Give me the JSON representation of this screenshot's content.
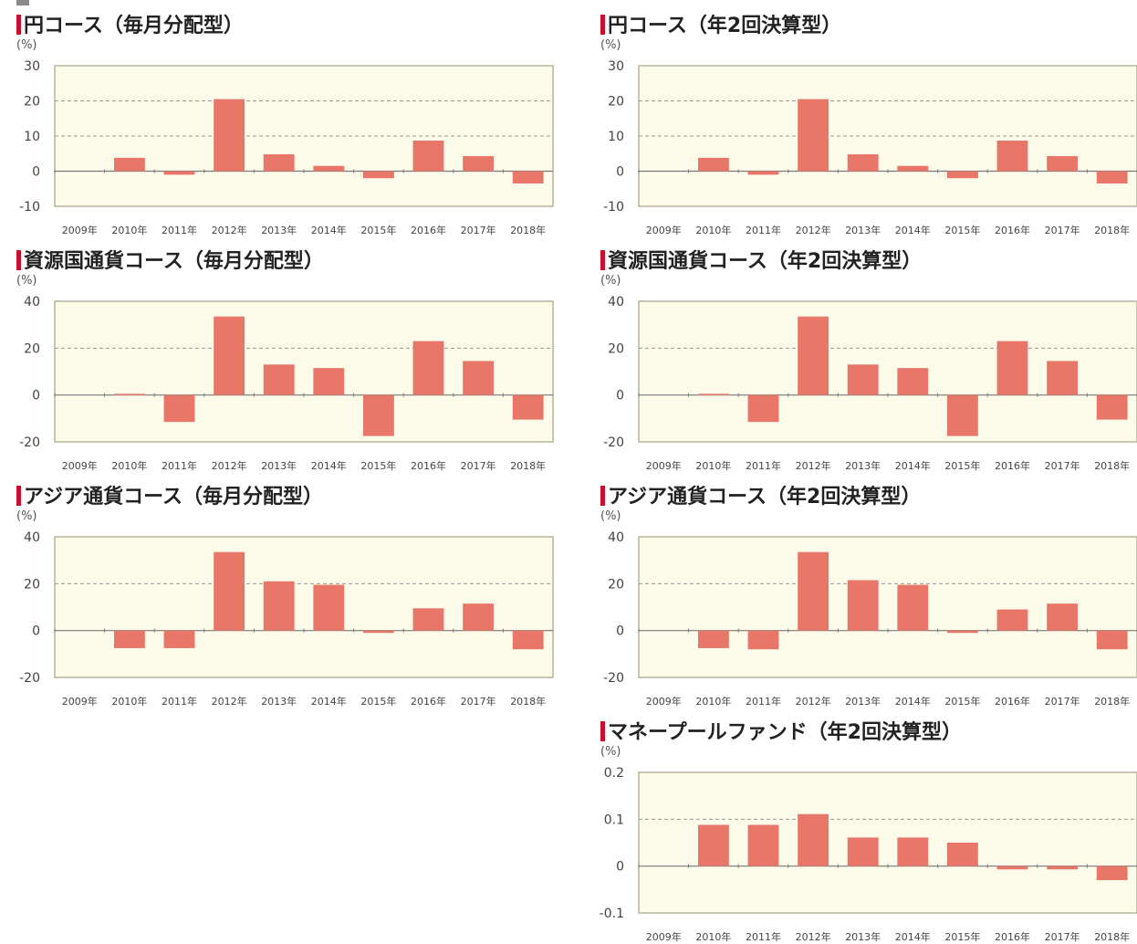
{
  "chart_data": [
    {
      "type": "bar",
      "title": "円コース（毎月分配型）",
      "unit_label": "(%)",
      "categories": [
        "2009年",
        "2010年",
        "2011年",
        "2012年",
        "2013年",
        "2014年",
        "2015年",
        "2016年",
        "2017年",
        "2018年"
      ],
      "values": [
        null,
        3.8,
        -1.0,
        20.5,
        4.8,
        1.5,
        -2.0,
        8.7,
        4.3,
        -3.5
      ],
      "ylim": [
        -10,
        30
      ],
      "yticks": [
        30,
        20,
        10,
        0,
        -10
      ],
      "ytick_labels": [
        "30",
        "20",
        "10",
        "0",
        "-10"
      ],
      "grid": "dashed"
    },
    {
      "type": "bar",
      "title": "円コース（年2回決算型）",
      "unit_label": "(%)",
      "categories": [
        "2009年",
        "2010年",
        "2011年",
        "2012年",
        "2013年",
        "2014年",
        "2015年",
        "2016年",
        "2017年",
        "2018年"
      ],
      "values": [
        null,
        3.8,
        -1.0,
        20.5,
        4.8,
        1.5,
        -2.0,
        8.7,
        4.3,
        -3.5
      ],
      "ylim": [
        -10,
        30
      ],
      "yticks": [
        30,
        20,
        10,
        0,
        -10
      ],
      "ytick_labels": [
        "30",
        "20",
        "10",
        "0",
        "-10"
      ],
      "grid": "dashed"
    },
    {
      "type": "bar",
      "title": "資源国通貨コース（毎月分配型）",
      "unit_label": "(%)",
      "categories": [
        "2009年",
        "2010年",
        "2011年",
        "2012年",
        "2013年",
        "2014年",
        "2015年",
        "2016年",
        "2017年",
        "2018年"
      ],
      "values": [
        null,
        0.5,
        -11.5,
        33.5,
        13.0,
        11.5,
        -17.5,
        23.0,
        14.5,
        -10.5
      ],
      "ylim": [
        -20,
        40
      ],
      "yticks": [
        40,
        20,
        0,
        -20
      ],
      "ytick_labels": [
        "40",
        "20",
        "0",
        "-20"
      ],
      "grid": "dashed"
    },
    {
      "type": "bar",
      "title": "資源国通貨コース（年2回決算型）",
      "unit_label": "(%)",
      "categories": [
        "2009年",
        "2010年",
        "2011年",
        "2012年",
        "2013年",
        "2014年",
        "2015年",
        "2016年",
        "2017年",
        "2018年"
      ],
      "values": [
        null,
        0.5,
        -11.5,
        33.5,
        13.0,
        11.5,
        -17.5,
        23.0,
        14.5,
        -10.5
      ],
      "ylim": [
        -20,
        40
      ],
      "yticks": [
        40,
        20,
        0,
        -20
      ],
      "ytick_labels": [
        "40",
        "20",
        "0",
        "-20"
      ],
      "grid": "dashed"
    },
    {
      "type": "bar",
      "title": "アジア通貨コース（毎月分配型）",
      "unit_label": "(%)",
      "categories": [
        "2009年",
        "2010年",
        "2011年",
        "2012年",
        "2013年",
        "2014年",
        "2015年",
        "2016年",
        "2017年",
        "2018年"
      ],
      "values": [
        null,
        -7.5,
        -7.5,
        33.5,
        21.0,
        19.5,
        -1.0,
        9.5,
        11.5,
        -8.0
      ],
      "ylim": [
        -20,
        40
      ],
      "yticks": [
        40,
        20,
        0,
        -20
      ],
      "ytick_labels": [
        "40",
        "20",
        "0",
        "-20"
      ],
      "grid": "dashed"
    },
    {
      "type": "bar",
      "title": "アジア通貨コース（年2回決算型）",
      "unit_label": "(%)",
      "categories": [
        "2009年",
        "2010年",
        "2011年",
        "2012年",
        "2013年",
        "2014年",
        "2015年",
        "2016年",
        "2017年",
        "2018年"
      ],
      "values": [
        null,
        -7.5,
        -8.0,
        33.5,
        21.5,
        19.5,
        -1.0,
        9.0,
        11.5,
        -8.0
      ],
      "ylim": [
        -20,
        40
      ],
      "yticks": [
        40,
        20,
        0,
        -20
      ],
      "ytick_labels": [
        "40",
        "20",
        "0",
        "-20"
      ],
      "grid": "dashed"
    },
    {
      "type": "bar",
      "title": "マネープールファンド（年2回決算型）",
      "unit_label": "(%)",
      "categories": [
        "2009年",
        "2010年",
        "2011年",
        "2012年",
        "2013年",
        "2014年",
        "2015年",
        "2016年",
        "2017年",
        "2018年"
      ],
      "values": [
        null,
        0.088,
        0.088,
        0.111,
        0.061,
        0.061,
        0.05,
        -0.007,
        -0.007,
        -0.03
      ],
      "ylim": [
        -0.1,
        0.2
      ],
      "yticks": [
        0.2,
        0.1,
        0,
        -0.1
      ],
      "ytick_labels": [
        "0.2",
        "0.1",
        "0",
        "-0.1"
      ],
      "grid": "dashed"
    }
  ],
  "colors": {
    "bar": "#e8776a",
    "plot_bg": "#fdfbe9",
    "frame": "#b9b49a",
    "grid": "#9a9a9a",
    "title_accent": "#c8102e"
  }
}
